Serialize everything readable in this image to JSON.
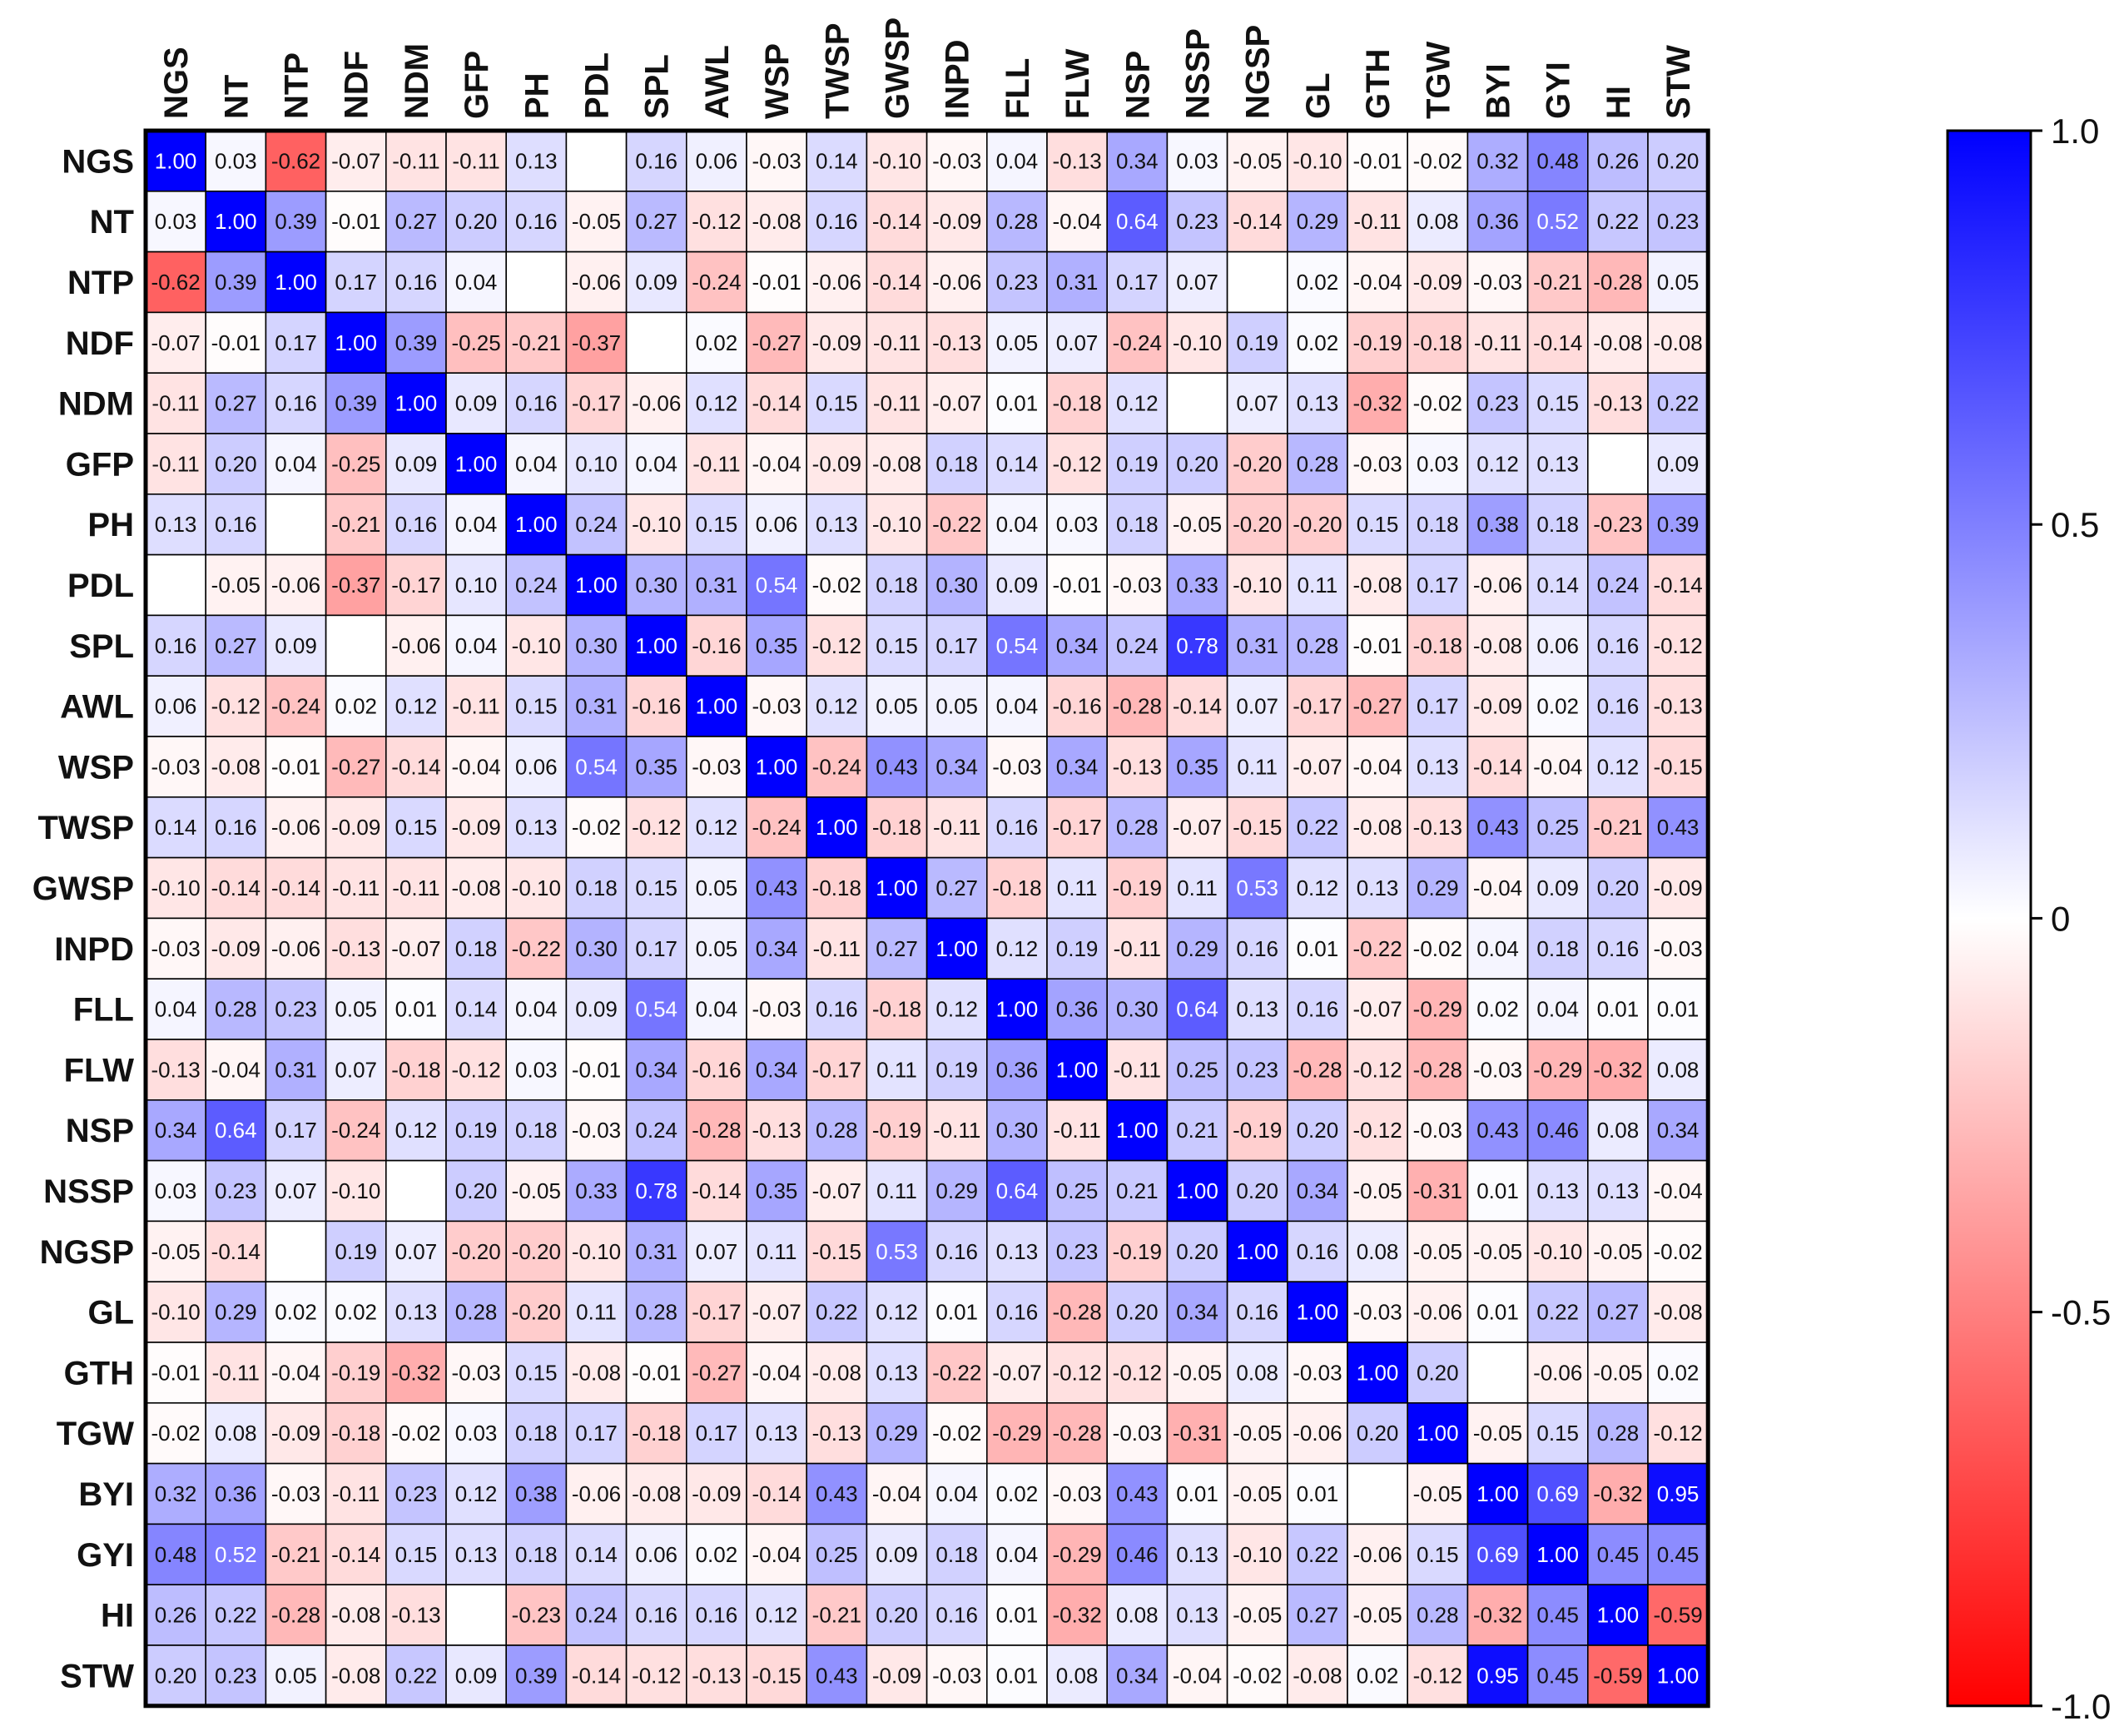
{
  "chart_data": {
    "type": "heatmap",
    "title": "",
    "variables": [
      "NGS",
      "NT",
      "NTP",
      "NDF",
      "NDM",
      "GFP",
      "PH",
      "PDL",
      "SPL",
      "AWL",
      "WSP",
      "TWSP",
      "GWSP",
      "INPD",
      "FLL",
      "FLW",
      "NSP",
      "NSSP",
      "NGSP",
      "GL",
      "GTH",
      "TGW",
      "BYI",
      "GYI",
      "HI",
      "STW"
    ],
    "matrix": [
      [
        1.0,
        0.03,
        -0.62,
        -0.07,
        -0.11,
        -0.11,
        0.13,
        null,
        0.16,
        0.06,
        -0.03,
        0.14,
        -0.1,
        -0.03,
        0.04,
        -0.13,
        0.34,
        0.03,
        -0.05,
        -0.1,
        -0.01,
        -0.02,
        0.32,
        0.48,
        0.26,
        0.2
      ],
      [
        0.03,
        1.0,
        0.39,
        -0.01,
        0.27,
        0.2,
        0.16,
        -0.05,
        0.27,
        -0.12,
        -0.08,
        0.16,
        -0.14,
        -0.09,
        0.28,
        -0.04,
        0.64,
        0.23,
        -0.14,
        0.29,
        -0.11,
        0.08,
        0.36,
        0.52,
        0.22,
        0.23
      ],
      [
        -0.62,
        0.39,
        1.0,
        0.17,
        0.16,
        0.04,
        null,
        -0.06,
        0.09,
        -0.24,
        -0.01,
        -0.06,
        -0.14,
        -0.06,
        0.23,
        0.31,
        0.17,
        0.07,
        null,
        0.02,
        -0.04,
        -0.09,
        -0.03,
        -0.21,
        -0.28,
        0.05
      ],
      [
        -0.07,
        -0.01,
        0.17,
        1.0,
        0.39,
        -0.25,
        -0.21,
        -0.37,
        null,
        0.02,
        -0.27,
        -0.09,
        -0.11,
        -0.13,
        0.05,
        0.07,
        -0.24,
        -0.1,
        0.19,
        0.02,
        -0.19,
        -0.18,
        -0.11,
        -0.14,
        -0.08,
        -0.08
      ],
      [
        -0.11,
        0.27,
        0.16,
        0.39,
        1.0,
        0.09,
        0.16,
        -0.17,
        -0.06,
        0.12,
        -0.14,
        0.15,
        -0.11,
        -0.07,
        0.01,
        -0.18,
        0.12,
        null,
        0.07,
        0.13,
        -0.32,
        -0.02,
        0.23,
        0.15,
        -0.13,
        0.22
      ],
      [
        -0.11,
        0.2,
        0.04,
        -0.25,
        0.09,
        1.0,
        0.04,
        0.1,
        0.04,
        -0.11,
        -0.04,
        -0.09,
        -0.08,
        0.18,
        0.14,
        -0.12,
        0.19,
        0.2,
        -0.2,
        0.28,
        -0.03,
        0.03,
        0.12,
        0.13,
        null,
        0.09
      ],
      [
        0.13,
        0.16,
        null,
        -0.21,
        0.16,
        0.04,
        1.0,
        0.24,
        -0.1,
        0.15,
        0.06,
        0.13,
        -0.1,
        -0.22,
        0.04,
        0.03,
        0.18,
        -0.05,
        -0.2,
        -0.2,
        0.15,
        0.18,
        0.38,
        0.18,
        -0.23,
        0.39
      ],
      [
        null,
        -0.05,
        -0.06,
        -0.37,
        -0.17,
        0.1,
        0.24,
        1.0,
        0.3,
        0.31,
        0.54,
        -0.02,
        0.18,
        0.3,
        0.09,
        -0.01,
        -0.03,
        0.33,
        -0.1,
        0.11,
        -0.08,
        0.17,
        -0.06,
        0.14,
        0.24,
        -0.14
      ],
      [
        0.16,
        0.27,
        0.09,
        null,
        -0.06,
        0.04,
        -0.1,
        0.3,
        1.0,
        -0.16,
        0.35,
        -0.12,
        0.15,
        0.17,
        0.54,
        0.34,
        0.24,
        0.78,
        0.31,
        0.28,
        -0.01,
        -0.18,
        -0.08,
        0.06,
        0.16,
        -0.12
      ],
      [
        0.06,
        -0.12,
        -0.24,
        0.02,
        0.12,
        -0.11,
        0.15,
        0.31,
        -0.16,
        1.0,
        -0.03,
        0.12,
        0.05,
        0.05,
        0.04,
        -0.16,
        -0.28,
        -0.14,
        0.07,
        -0.17,
        -0.27,
        0.17,
        -0.09,
        0.02,
        0.16,
        -0.13
      ],
      [
        -0.03,
        -0.08,
        -0.01,
        -0.27,
        -0.14,
        -0.04,
        0.06,
        0.54,
        0.35,
        -0.03,
        1.0,
        -0.24,
        0.43,
        0.34,
        -0.03,
        0.34,
        -0.13,
        0.35,
        0.11,
        -0.07,
        -0.04,
        0.13,
        -0.14,
        -0.04,
        0.12,
        -0.15
      ],
      [
        0.14,
        0.16,
        -0.06,
        -0.09,
        0.15,
        -0.09,
        0.13,
        -0.02,
        -0.12,
        0.12,
        -0.24,
        1.0,
        -0.18,
        -0.11,
        0.16,
        -0.17,
        0.28,
        -0.07,
        -0.15,
        0.22,
        -0.08,
        -0.13,
        0.43,
        0.25,
        -0.21,
        0.43
      ],
      [
        -0.1,
        -0.14,
        -0.14,
        -0.11,
        -0.11,
        -0.08,
        -0.1,
        0.18,
        0.15,
        0.05,
        0.43,
        -0.18,
        1.0,
        0.27,
        -0.18,
        0.11,
        -0.19,
        0.11,
        0.53,
        0.12,
        0.13,
        0.29,
        -0.04,
        0.09,
        0.2,
        -0.09
      ],
      [
        -0.03,
        -0.09,
        -0.06,
        -0.13,
        -0.07,
        0.18,
        -0.22,
        0.3,
        0.17,
        0.05,
        0.34,
        -0.11,
        0.27,
        1.0,
        0.12,
        0.19,
        -0.11,
        0.29,
        0.16,
        0.01,
        -0.22,
        -0.02,
        0.04,
        0.18,
        0.16,
        -0.03
      ],
      [
        0.04,
        0.28,
        0.23,
        0.05,
        0.01,
        0.14,
        0.04,
        0.09,
        0.54,
        0.04,
        -0.03,
        0.16,
        -0.18,
        0.12,
        1.0,
        0.36,
        0.3,
        0.64,
        0.13,
        0.16,
        -0.07,
        -0.29,
        0.02,
        0.04,
        0.01,
        0.01
      ],
      [
        -0.13,
        -0.04,
        0.31,
        0.07,
        -0.18,
        -0.12,
        0.03,
        -0.01,
        0.34,
        -0.16,
        0.34,
        -0.17,
        0.11,
        0.19,
        0.36,
        1.0,
        -0.11,
        0.25,
        0.23,
        -0.28,
        -0.12,
        -0.28,
        -0.03,
        -0.29,
        -0.32,
        0.08
      ],
      [
        0.34,
        0.64,
        0.17,
        -0.24,
        0.12,
        0.19,
        0.18,
        -0.03,
        0.24,
        -0.28,
        -0.13,
        0.28,
        -0.19,
        -0.11,
        0.3,
        -0.11,
        1.0,
        0.21,
        -0.19,
        0.2,
        -0.12,
        -0.03,
        0.43,
        0.46,
        0.08,
        0.34
      ],
      [
        0.03,
        0.23,
        0.07,
        -0.1,
        null,
        0.2,
        -0.05,
        0.33,
        0.78,
        -0.14,
        0.35,
        -0.07,
        0.11,
        0.29,
        0.64,
        0.25,
        0.21,
        1.0,
        0.2,
        0.34,
        -0.05,
        -0.31,
        0.01,
        0.13,
        0.13,
        -0.04
      ],
      [
        -0.05,
        -0.14,
        null,
        0.19,
        0.07,
        -0.2,
        -0.2,
        -0.1,
        0.31,
        0.07,
        0.11,
        -0.15,
        0.53,
        0.16,
        0.13,
        0.23,
        -0.19,
        0.2,
        1.0,
        0.16,
        0.08,
        -0.05,
        -0.05,
        -0.1,
        -0.05,
        -0.02
      ],
      [
        -0.1,
        0.29,
        0.02,
        0.02,
        0.13,
        0.28,
        -0.2,
        0.11,
        0.28,
        -0.17,
        -0.07,
        0.22,
        0.12,
        0.01,
        0.16,
        -0.28,
        0.2,
        0.34,
        0.16,
        1.0,
        -0.03,
        -0.06,
        0.01,
        0.22,
        0.27,
        -0.08
      ],
      [
        -0.01,
        -0.11,
        -0.04,
        -0.19,
        -0.32,
        -0.03,
        0.15,
        -0.08,
        -0.01,
        -0.27,
        -0.04,
        -0.08,
        0.13,
        -0.22,
        -0.07,
        -0.12,
        -0.12,
        -0.05,
        0.08,
        -0.03,
        1.0,
        0.2,
        null,
        -0.06,
        -0.05,
        0.02
      ],
      [
        -0.02,
        0.08,
        -0.09,
        -0.18,
        -0.02,
        0.03,
        0.18,
        0.17,
        -0.18,
        0.17,
        0.13,
        -0.13,
        0.29,
        -0.02,
        -0.29,
        -0.28,
        -0.03,
        -0.31,
        -0.05,
        -0.06,
        0.2,
        1.0,
        -0.05,
        0.15,
        0.28,
        -0.12
      ],
      [
        0.32,
        0.36,
        -0.03,
        -0.11,
        0.23,
        0.12,
        0.38,
        -0.06,
        -0.08,
        -0.09,
        -0.14,
        0.43,
        -0.04,
        0.04,
        0.02,
        -0.03,
        0.43,
        0.01,
        -0.05,
        0.01,
        null,
        -0.05,
        1.0,
        0.69,
        -0.32,
        0.95
      ],
      [
        0.48,
        0.52,
        -0.21,
        -0.14,
        0.15,
        0.13,
        0.18,
        0.14,
        0.06,
        0.02,
        -0.04,
        0.25,
        0.09,
        0.18,
        0.04,
        -0.29,
        0.46,
        0.13,
        -0.1,
        0.22,
        -0.06,
        0.15,
        0.69,
        1.0,
        0.45,
        0.45
      ],
      [
        0.26,
        0.22,
        -0.28,
        -0.08,
        -0.13,
        null,
        -0.23,
        0.24,
        0.16,
        0.16,
        0.12,
        -0.21,
        0.2,
        0.16,
        0.01,
        -0.32,
        0.08,
        0.13,
        -0.05,
        0.27,
        -0.05,
        0.28,
        -0.32,
        0.45,
        1.0,
        -0.59
      ],
      [
        0.2,
        0.23,
        0.05,
        -0.08,
        0.22,
        0.09,
        0.39,
        -0.14,
        -0.12,
        -0.13,
        -0.15,
        0.43,
        -0.09,
        -0.03,
        0.01,
        0.08,
        0.34,
        -0.04,
        -0.02,
        -0.08,
        0.02,
        -0.12,
        0.95,
        0.45,
        -0.59,
        1.0
      ]
    ],
    "color_scale": {
      "min": -1.0,
      "max": 1.0,
      "ticks": [
        1.0,
        0.5,
        0,
        -0.5,
        -1.0
      ],
      "tick_labels": [
        "1.0",
        "0.5",
        "0",
        "-0.5",
        "-1.0"
      ],
      "colors": {
        "negative": "#ff0000",
        "zero": "#ffffff",
        "positive": "#0000ff"
      }
    },
    "legend": "right"
  }
}
